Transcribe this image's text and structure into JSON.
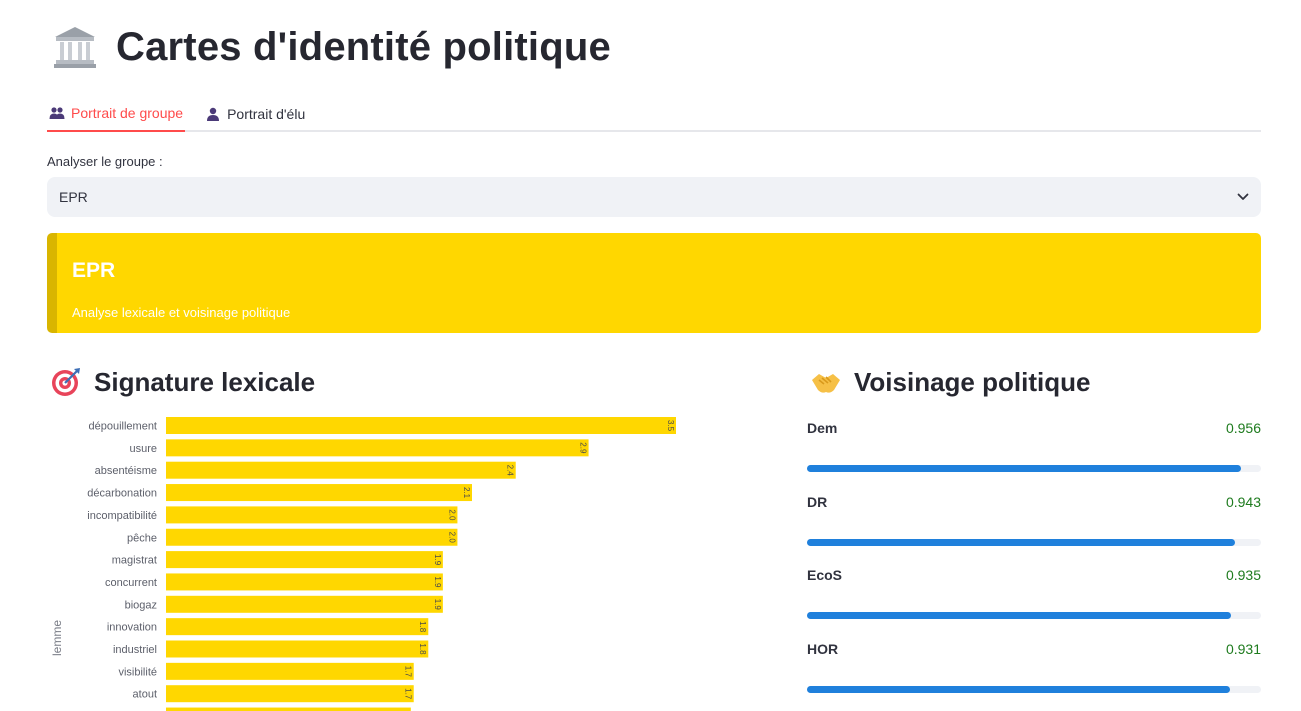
{
  "page": {
    "title": "Cartes d'identité politique",
    "title_icon": "classical-building-icon"
  },
  "tabs": [
    {
      "label": "Portrait de groupe",
      "icon": "group-icon",
      "active": true
    },
    {
      "label": "Portrait d'élu",
      "icon": "person-icon",
      "active": false
    }
  ],
  "group_select": {
    "label": "Analyser le groupe :",
    "value": "EPR"
  },
  "banner": {
    "title": "EPR",
    "subtitle": "Analyse lexicale et voisinage politique",
    "color": "#ffd700"
  },
  "lexical_section": {
    "heading": "Signature lexicale",
    "icon": "target-icon"
  },
  "neighbors_section": {
    "heading": "Voisinage politique",
    "icon": "handshake-icon",
    "items": [
      {
        "name": "Dem",
        "value": "0.956",
        "score": 0.956
      },
      {
        "name": "DR",
        "value": "0.943",
        "score": 0.943
      },
      {
        "name": "EcoS",
        "value": "0.935",
        "score": 0.935
      },
      {
        "name": "HOR",
        "value": "0.931",
        "score": 0.931
      }
    ]
  },
  "chart_data": {
    "type": "bar",
    "orientation": "horizontal",
    "ylabel": "lemme",
    "bar_color": "#ffd700",
    "categories": [
      "dépouillement",
      "usure",
      "absentéisme",
      "décarbonation",
      "incompatibilité",
      "pêche",
      "magistrat",
      "concurrent",
      "biogaz",
      "innovation",
      "industriel",
      "visibilité",
      "atout"
    ],
    "values": [
      3.5,
      2.9,
      2.4,
      2.1,
      2.0,
      2.0,
      1.9,
      1.9,
      1.9,
      1.8,
      1.8,
      1.7,
      1.7
    ],
    "value_labels": [
      "3.5",
      "2.9",
      "2.4",
      "2.1",
      "2.0",
      "2.0",
      "1.9",
      "1.9",
      "1.9",
      "1.8",
      "1.8",
      "1.7",
      "1.7"
    ],
    "xlim": [
      0,
      3.5
    ]
  }
}
